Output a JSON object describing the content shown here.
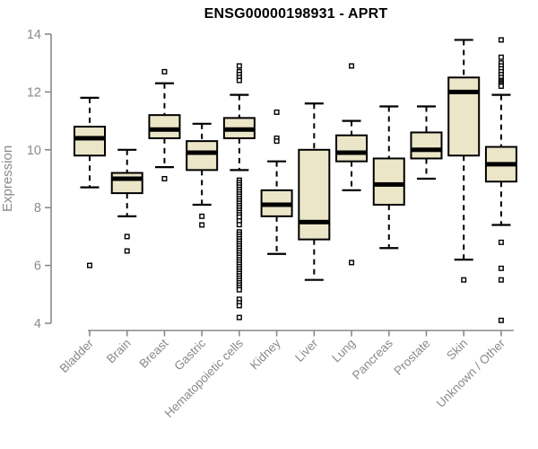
{
  "chart_data": {
    "type": "boxplot",
    "title": "ENSG00000198931 - APRT",
    "ylabel": "Expression",
    "xlabel": "",
    "ylim": [
      4,
      14
    ],
    "yticks": [
      4,
      6,
      8,
      10,
      12,
      14
    ],
    "grid": false,
    "legend": "none",
    "categories": [
      "Bladder",
      "Brain",
      "Breast",
      "Gastric",
      "Hematopoietic cells",
      "Kidney",
      "Liver",
      "Lung",
      "Pancreas",
      "Prostate",
      "Skin",
      "Unknown / Other"
    ],
    "series": [
      {
        "name": "Bladder",
        "whisker_low": 8.7,
        "q1": 9.8,
        "median": 10.4,
        "q3": 10.8,
        "whisker_high": 11.8,
        "outliers": [
          6.0
        ]
      },
      {
        "name": "Brain",
        "whisker_low": 7.7,
        "q1": 8.5,
        "median": 9.0,
        "q3": 9.2,
        "whisker_high": 10.0,
        "outliers": [
          7.0,
          6.5
        ]
      },
      {
        "name": "Breast",
        "whisker_low": 9.4,
        "q1": 10.4,
        "median": 10.7,
        "q3": 11.2,
        "whisker_high": 12.3,
        "outliers": [
          12.7,
          9.0
        ]
      },
      {
        "name": "Gastric",
        "whisker_low": 8.1,
        "q1": 9.3,
        "median": 9.9,
        "q3": 10.3,
        "whisker_high": 10.9,
        "outliers": [
          7.7,
          7.4
        ]
      },
      {
        "name": "Hematopoietic cells",
        "whisker_low": 9.3,
        "q1": 10.4,
        "median": 10.7,
        "q3": 11.1,
        "whisker_high": 11.9,
        "outliers": [
          12.9,
          12.7,
          12.6,
          12.5,
          12.4,
          8.95,
          8.87,
          8.79,
          8.71,
          8.63,
          8.55,
          8.47,
          8.39,
          8.31,
          8.23,
          8.15,
          8.07,
          7.99,
          7.91,
          7.83,
          7.75,
          7.67,
          7.54,
          7.41,
          7.16,
          7.08,
          7.0,
          6.92,
          6.84,
          6.76,
          6.68,
          6.6,
          6.52,
          6.44,
          6.36,
          6.28,
          6.2,
          6.12,
          6.04,
          5.96,
          5.88,
          5.8,
          5.72,
          5.64,
          5.56,
          5.48,
          5.4,
          5.32,
          5.24,
          5.16,
          4.83,
          4.71,
          4.61,
          4.2
        ]
      },
      {
        "name": "Kidney",
        "whisker_low": 6.4,
        "q1": 7.7,
        "median": 8.1,
        "q3": 8.6,
        "whisker_high": 9.6,
        "outliers": [
          11.3,
          10.4,
          10.3
        ]
      },
      {
        "name": "Liver",
        "whisker_low": 5.5,
        "q1": 6.9,
        "median": 7.5,
        "q3": 10.0,
        "whisker_high": 11.6,
        "outliers": []
      },
      {
        "name": "Lung",
        "whisker_low": 8.6,
        "q1": 9.6,
        "median": 9.9,
        "q3": 10.5,
        "whisker_high": 11.0,
        "outliers": [
          12.9,
          6.1
        ]
      },
      {
        "name": "Pancreas",
        "whisker_low": 6.6,
        "q1": 8.1,
        "median": 8.8,
        "q3": 9.7,
        "whisker_high": 11.5,
        "outliers": []
      },
      {
        "name": "Prostate",
        "whisker_low": 9.0,
        "q1": 9.7,
        "median": 10.0,
        "q3": 10.6,
        "whisker_high": 11.5,
        "outliers": []
      },
      {
        "name": "Skin",
        "whisker_low": 6.2,
        "q1": 9.8,
        "median": 12.0,
        "q3": 12.5,
        "whisker_high": 13.8,
        "outliers": [
          5.5
        ]
      },
      {
        "name": "Unknown / Other",
        "whisker_low": 7.4,
        "q1": 8.9,
        "median": 9.5,
        "q3": 10.1,
        "whisker_high": 11.9,
        "outliers": [
          13.8,
          13.2,
          13.0,
          12.9,
          12.8,
          12.7,
          12.6,
          12.5,
          12.4,
          12.35,
          12.3,
          12.25,
          12.2,
          6.8,
          5.9,
          5.5,
          4.1
        ]
      }
    ],
    "colors": {
      "box_fill": "#ECE6C8",
      "box_border": "#000000",
      "median": "#000000",
      "whisker": "#000000",
      "outlier_stroke": "#000000",
      "outlier_fill": "#ffffff",
      "axis": "#8a8a8a",
      "tick_label": "#8a8a8a",
      "title": "#000000",
      "background": "#ffffff"
    }
  }
}
